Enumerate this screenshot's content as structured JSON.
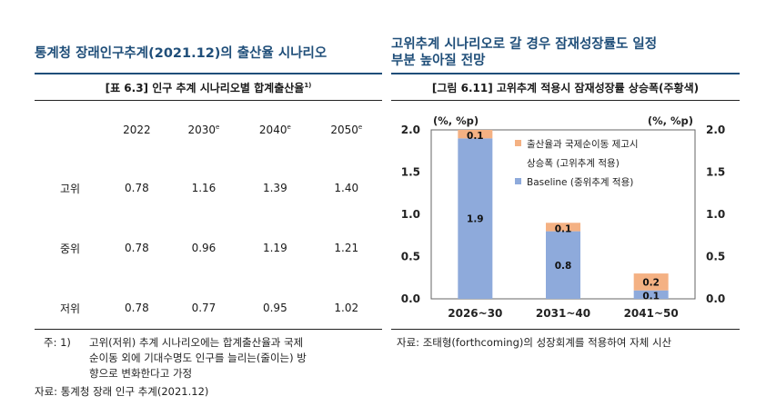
{
  "left": {
    "heading": "통계청 장래인구추계(2021.12)의 출산율 시나리오",
    "subtitle": "[표 6.3] 인구 추계 시나리오별 합계출산율",
    "subtitle_sup": "1)",
    "columns": [
      {
        "year": "2022",
        "sup": ""
      },
      {
        "year": "2030",
        "sup": "e"
      },
      {
        "year": "2040",
        "sup": "e"
      },
      {
        "year": "2050",
        "sup": "e"
      }
    ],
    "rows": [
      {
        "label": "고위",
        "values": [
          "0.78",
          "1.16",
          "1.39",
          "1.40"
        ]
      },
      {
        "label": "중위",
        "values": [
          "0.78",
          "0.96",
          "1.19",
          "1.21"
        ]
      },
      {
        "label": "저위",
        "values": [
          "0.78",
          "0.77",
          "0.95",
          "1.02"
        ]
      }
    ],
    "note_prefix": "주: 1)",
    "note_lines": [
      "고위(저위) 추계 시나리오에는 합계출산율과 국제",
      "순이동 외에 기대수명도 인구를 늘리는(줄이는) 방",
      "향으로 변화한다고 가정"
    ],
    "source": "자료: 통계청 장래 인구 추계(2021.12)"
  },
  "right": {
    "heading_line1": "고위추계 시나리오로 갈 경우 잠재성장률도 일정",
    "heading_line2": "부분 높아질 전망",
    "subtitle": "[그림 6.11] 고위추계 적용시 잠재성장률 상승폭(주황색)",
    "source": "자료: 조태형(forthcoming)의 성장회계를 적용하여 자체 시산"
  },
  "chart_data": {
    "type": "bar",
    "stacked": true,
    "categories": [
      "2026~30",
      "2031~40",
      "2041~50"
    ],
    "series": [
      {
        "name": "Baseline (중위추계 적용)",
        "values": [
          1.9,
          0.8,
          0.1
        ],
        "labels": [
          "1.9",
          "0.8",
          "0.1"
        ],
        "color": "#8eaadb"
      },
      {
        "name": "출산율과 국제순이동 제고시 상승폭 (고위추계 적용)",
        "values": [
          0.1,
          0.1,
          0.2
        ],
        "labels": [
          "0.1",
          "0.1",
          "0.2"
        ],
        "color": "#f4b183"
      }
    ],
    "legend_lines": [
      "출산율과 국제순이동 제고시",
      "상승폭 (고위추계 적용)",
      "Baseline (중위추계 적용)"
    ],
    "y_unit_left": "(%, %p)",
    "y_unit_right": "(%, %p)",
    "ylim": [
      0,
      2.0
    ],
    "yticks": [
      "0.0",
      "0.5",
      "1.0",
      "1.5",
      "2.0"
    ],
    "legend_position": "top-right",
    "grid": false
  }
}
